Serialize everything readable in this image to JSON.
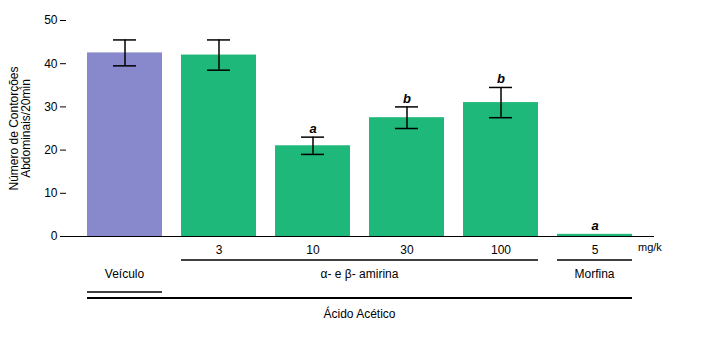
{
  "chart_data": {
    "type": "bar",
    "ylabel": "Número de Contorções\nAbdominais/20min",
    "categories": [
      null,
      "3",
      "10",
      "30",
      "100",
      "5"
    ],
    "values": [
      42.5,
      42.0,
      21.0,
      27.5,
      31.0,
      0.5
    ],
    "errors": [
      3.0,
      3.5,
      2.0,
      2.5,
      3.5,
      0.0
    ],
    "colors": [
      "#8888cc",
      "#1db87a",
      "#1db87a",
      "#1db87a",
      "#1db87a",
      "#1db87a"
    ],
    "significance_labels": [
      null,
      null,
      "a",
      "b",
      "b",
      "a"
    ],
    "groups": [
      "Veículo",
      "α- e β- amirina",
      "α- e β- amirina",
      "α- e β- amirina",
      "α- e β- amirina",
      "Morfina"
    ],
    "unit_label": "mg/k",
    "bottom_label": "Ácido Acético",
    "ylim": [
      0,
      50
    ],
    "yticks": [
      0,
      10,
      20,
      30,
      40,
      50
    ],
    "grid": false
  }
}
